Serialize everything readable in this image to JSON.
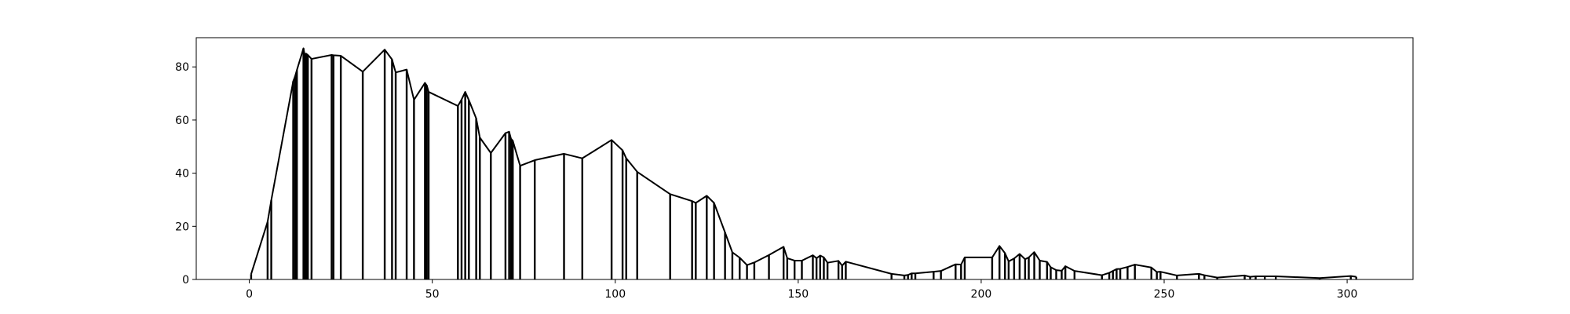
{
  "chart_data": {
    "type": "line",
    "title": "",
    "xlabel": "",
    "ylabel": "",
    "xlim": [
      -14.5,
      318
    ],
    "ylim": [
      0,
      91
    ],
    "x_ticks": [
      0,
      50,
      100,
      150,
      200,
      250,
      300
    ],
    "x_tick_labels": [
      "0",
      "50",
      "100",
      "150",
      "200",
      "250",
      "300"
    ],
    "y_ticks": [
      0,
      20,
      40,
      60,
      80
    ],
    "y_tick_labels": [
      "0",
      "20",
      "40",
      "60",
      "80"
    ],
    "grid": false,
    "legend": "none",
    "render_as": "vertical lines from 0 to each value plus a connecting polyline",
    "line_color": "#000000",
    "series": [
      {
        "x": [
          0.5,
          5,
          6,
          12,
          12.5,
          13,
          14.8,
          15.2,
          15.5,
          16,
          17,
          22.5,
          23,
          25,
          31,
          37,
          39,
          40,
          43,
          45,
          48,
          48.5,
          49,
          57,
          58,
          59,
          60,
          62,
          63,
          66,
          70,
          71,
          71.5,
          72,
          74,
          78,
          86,
          91,
          99,
          102,
          103,
          106,
          115,
          121,
          122,
          125,
          127,
          130,
          132,
          134,
          136,
          138,
          142,
          146,
          147,
          149,
          151,
          154,
          155,
          156,
          157,
          158,
          161,
          162,
          163,
          175.5,
          179,
          180,
          181,
          182,
          187,
          189,
          193,
          194.5,
          195.5,
          203,
          205,
          206.5,
          207.5,
          209,
          210.5,
          212,
          213,
          214.5,
          216,
          218,
          219,
          220.5,
          222,
          223,
          225.5,
          233,
          235,
          236,
          237,
          238,
          240,
          242,
          246.5,
          248,
          249,
          253.5,
          259.5,
          261,
          264.5,
          272,
          273.5,
          275,
          277.5,
          280.5,
          292.5,
          301,
          302.5
        ],
        "values": [
          2,
          21.7,
          29.8,
          74.6,
          76.4,
          78.8,
          87,
          84,
          85,
          84.5,
          83,
          84.5,
          84.4,
          84.2,
          78.2,
          86.5,
          82.8,
          77.9,
          79,
          67.6,
          74,
          73,
          70.6,
          65.3,
          67.7,
          70.6,
          67.5,
          60.6,
          53.4,
          47.6,
          55.1,
          55.6,
          53,
          52.2,
          42.8,
          44.9,
          47.3,
          45.6,
          52.5,
          48.6,
          45.6,
          40.5,
          32.1,
          29.5,
          28.8,
          31.5,
          28.8,
          17.7,
          10.2,
          8.2,
          5.4,
          6.4,
          9.2,
          12.3,
          8,
          7.1,
          7.1,
          9.1,
          8,
          9,
          8.3,
          6.3,
          7,
          5.2,
          6.7,
          2.1,
          1.5,
          1.7,
          2.3,
          2.3,
          2.9,
          3.2,
          5.7,
          5.6,
          8.3,
          8.3,
          12.6,
          9.9,
          6.8,
          7.9,
          9.6,
          7.6,
          8.3,
          10.3,
          7.1,
          6.6,
          4.6,
          3.5,
          3.3,
          5,
          3.2,
          1.6,
          2.5,
          3.2,
          3.9,
          4,
          4.7,
          5.6,
          4.5,
          2.8,
          2.9,
          1.5,
          2.1,
          1.6,
          0.7,
          1.5,
          1,
          1.2,
          1.2,
          1.2,
          0.5,
          1.3,
          1
        ]
      }
    ]
  }
}
